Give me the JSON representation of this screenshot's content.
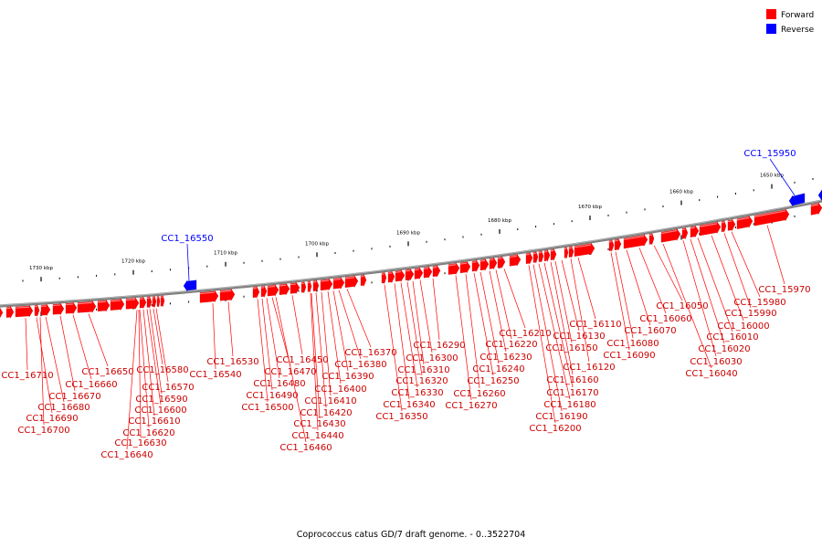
{
  "caption": "Coprococcus catus GD/7 draft genome. - 0..3522704",
  "legend": [
    {
      "label": "Forward",
      "color": "#ff0000"
    },
    {
      "label": "Reverse",
      "color": "#0000ff"
    }
  ],
  "colors": {
    "forward": "#ff0000",
    "reverse": "#0000ff",
    "backbone": "#808080"
  },
  "ticks": [
    {
      "label": "1730 kbp"
    },
    {
      "label": "1720 kbp"
    },
    {
      "label": "1710 kbp"
    },
    {
      "label": "1700 kbp"
    },
    {
      "label": "1690 kbp"
    },
    {
      "label": "1680 kbp"
    },
    {
      "label": "1670 kbp"
    },
    {
      "label": "1660 kbp"
    },
    {
      "label": "1650 kbp"
    }
  ],
  "reverse_genes": [
    {
      "label": "CC1_16550"
    },
    {
      "label": "CC1_15950"
    }
  ],
  "forward_labels": [
    "CC1_16710",
    "CC1_16700",
    "CC1_16690",
    "CC1_16680",
    "CC1_16670",
    "CC1_16660",
    "CC1_16650",
    "CC1_16640",
    "CC1_16630",
    "CC1_16620",
    "CC1_16610",
    "CC1_16600",
    "CC1_16590",
    "CC1_16580",
    "CC1_16570",
    "CC1_16540",
    "CC1_16530",
    "CC1_16500",
    "CC1_16490",
    "CC1_16480",
    "CC1_16470",
    "CC1_16460",
    "CC1_16450",
    "CC1_16440",
    "CC1_16430",
    "CC1_16420",
    "CC1_16410",
    "CC1_16400",
    "CC1_16390",
    "CC1_16380",
    "CC1_16370",
    "CC1_16350",
    "CC1_16340",
    "CC1_16330",
    "CC1_16320",
    "CC1_16310",
    "CC1_16300",
    "CC1_16290",
    "CC1_16270",
    "CC1_16260",
    "CC1_16250",
    "CC1_16240",
    "CC1_16230",
    "CC1_16220",
    "CC1_16210",
    "CC1_16200",
    "CC1_16190",
    "CC1_16180",
    "CC1_16170",
    "CC1_16160",
    "CC1_16150",
    "CC1_16130",
    "CC1_16120",
    "CC1_16110",
    "CC1_16090",
    "CC1_16080",
    "CC1_16070",
    "CC1_16060",
    "CC1_16050",
    "CC1_16040",
    "CC1_16030",
    "CC1_16020",
    "CC1_16010",
    "CC1_16000",
    "CC1_15990",
    "CC1_15980",
    "CC1_15970"
  ]
}
